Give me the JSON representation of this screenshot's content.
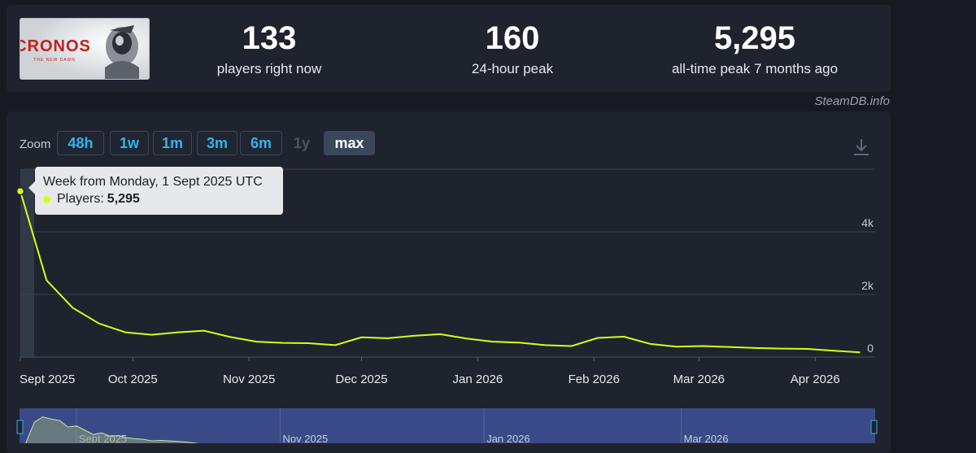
{
  "header": {
    "logo": {
      "title": "CRONOS",
      "subtitle": "THE NEW DAWN"
    },
    "stats": [
      {
        "value": "133",
        "label": "players right now"
      },
      {
        "value": "160",
        "label": "24-hour peak"
      },
      {
        "value": "5,295",
        "label": "all-time peak 7 months ago"
      }
    ]
  },
  "watermark": "SteamDB.info",
  "zoom": {
    "label": "Zoom",
    "buttons": [
      {
        "label": "48h",
        "state": "normal"
      },
      {
        "label": "1w",
        "state": "normal"
      },
      {
        "label": "1m",
        "state": "normal"
      },
      {
        "label": "3m",
        "state": "normal"
      },
      {
        "label": "6m",
        "state": "normal"
      },
      {
        "label": "1y",
        "state": "disabled"
      },
      {
        "label": "max",
        "state": "active"
      }
    ]
  },
  "tooltip": {
    "title": "Week from Monday, 1 Sept 2025 UTC",
    "series_label": "Players:",
    "value": "5,295"
  },
  "icons": {
    "download": "download-icon"
  },
  "colors": {
    "line": "#d4ff1a",
    "accent": "#35b2ee",
    "panel": "#1f232d",
    "navigator": "#3a4a86"
  },
  "chart_data": {
    "type": "line",
    "series": [
      {
        "name": "Players",
        "x": [
          "2025-09-01",
          "2025-09-08",
          "2025-09-15",
          "2025-09-22",
          "2025-09-29",
          "2025-10-06",
          "2025-10-13",
          "2025-10-20",
          "2025-10-27",
          "2025-11-03",
          "2025-11-10",
          "2025-11-17",
          "2025-11-24",
          "2025-12-01",
          "2025-12-08",
          "2025-12-15",
          "2025-12-22",
          "2025-12-29",
          "2026-01-05",
          "2026-01-12",
          "2026-01-19",
          "2026-01-26",
          "2026-02-02",
          "2026-02-09",
          "2026-02-16",
          "2026-02-23",
          "2026-03-02",
          "2026-03-09",
          "2026-03-16",
          "2026-03-23",
          "2026-03-30",
          "2026-04-06",
          "2026-04-13"
        ],
        "values": [
          5295,
          2450,
          1570,
          1070,
          790,
          710,
          790,
          840,
          640,
          490,
          450,
          440,
          380,
          630,
          600,
          680,
          730,
          590,
          490,
          460,
          380,
          350,
          610,
          650,
          420,
          330,
          350,
          320,
          290,
          270,
          260,
          200,
          150
        ]
      }
    ],
    "x_axis": {
      "type": "date",
      "tick_labels": [
        "Sept 2025",
        "Oct 2025",
        "Nov 2025",
        "Dec 2025",
        "Jan 2026",
        "Feb 2026",
        "Mar 2026",
        "Apr 2026"
      ],
      "tick_dates": [
        "2025-09-01",
        "2025-10-01",
        "2025-11-01",
        "2025-12-01",
        "2026-01-01",
        "2026-02-01",
        "2026-03-01",
        "2026-04-01"
      ],
      "range": [
        "2025-09-01",
        "2026-04-17"
      ]
    },
    "y_axis": {
      "tick_labels": [
        "0",
        "2k",
        "4k"
      ],
      "tick_values": [
        0,
        2000,
        4000
      ],
      "range": [
        0,
        6000
      ],
      "position": "right"
    },
    "grid": true,
    "highlight_point": "2025-09-01",
    "navigator": {
      "tick_labels": [
        "Sept 2025",
        "Nov 2025",
        "Jan 2026",
        "Mar 2026"
      ],
      "tick_dates": [
        "2025-09-01",
        "2025-11-01",
        "2026-01-01",
        "2026-03-01"
      ],
      "range": [
        "2025-08-15",
        "2026-04-28"
      ],
      "values": [
        1200,
        5000,
        6000,
        5600,
        5300,
        4100,
        4300,
        3500,
        2700,
        3000,
        2400,
        2500,
        2100,
        1900,
        1800,
        1500,
        1600,
        1500,
        1400,
        1300,
        1100,
        900,
        800,
        700,
        600,
        500,
        500,
        400,
        400,
        300
      ],
      "y_range": [
        0,
        7000
      ]
    }
  }
}
